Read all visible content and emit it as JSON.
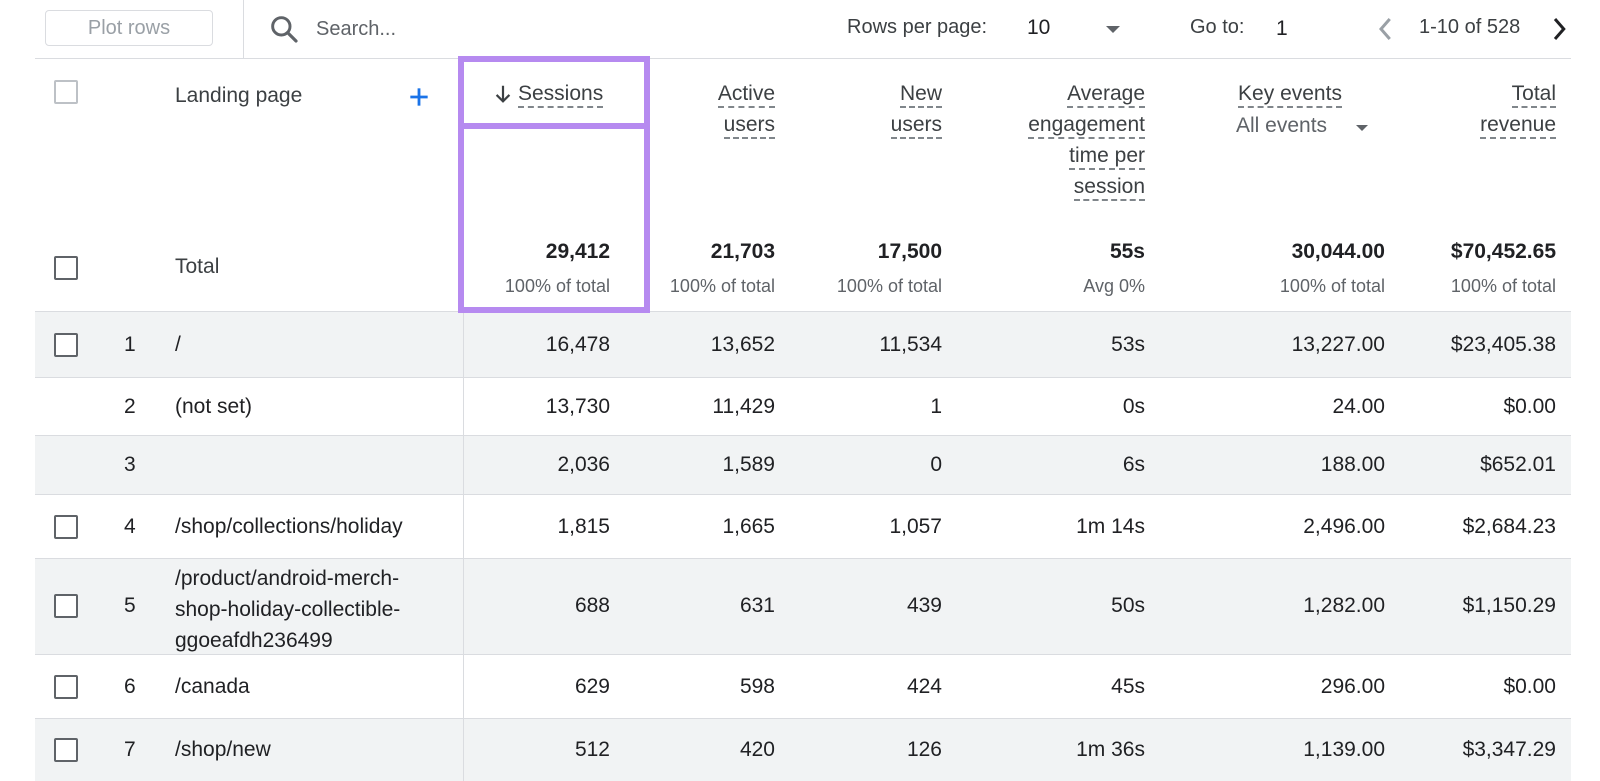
{
  "toolbar": {
    "plot_rows_label": "Plot rows",
    "search_placeholder": "Search...",
    "rows_per_page_label": "Rows per page:",
    "rows_per_page_value": "10",
    "go_to_label": "Go to:",
    "go_to_value": "1",
    "range_text": "1-10 of 528"
  },
  "header": {
    "dimension_label": "Landing page",
    "sessions_label": "Sessions",
    "active_users_label": [
      "Active",
      "users"
    ],
    "new_users_label": [
      "New",
      "users"
    ],
    "avg_engagement_label": [
      "Average",
      "engagement",
      "time per",
      "session"
    ],
    "key_events_label": "Key events",
    "key_events_filter": "All events",
    "total_revenue_label": [
      "Total",
      "revenue"
    ]
  },
  "totals": {
    "label": "Total",
    "sessions": "29,412",
    "sessions_sub": "100% of total",
    "active_users": "21,703",
    "active_users_sub": "100% of total",
    "new_users": "17,500",
    "new_users_sub": "100% of total",
    "avg_engagement": "55s",
    "avg_engagement_sub": "Avg 0%",
    "key_events": "30,044.00",
    "key_events_sub": "100% of total",
    "total_revenue": "$70,452.65",
    "total_revenue_sub": "100% of total"
  },
  "rows": [
    {
      "index": "1",
      "page": "/",
      "sessions": "16,478",
      "active_users": "13,652",
      "new_users": "11,534",
      "avg_engagement": "53s",
      "key_events": "13,227.00",
      "revenue": "$23,405.38"
    },
    {
      "index": "2",
      "page": "(not set)",
      "sessions": "13,730",
      "active_users": "11,429",
      "new_users": "1",
      "avg_engagement": "0s",
      "key_events": "24.00",
      "revenue": "$0.00"
    },
    {
      "index": "3",
      "page": "",
      "sessions": "2,036",
      "active_users": "1,589",
      "new_users": "0",
      "avg_engagement": "6s",
      "key_events": "188.00",
      "revenue": "$652.01"
    },
    {
      "index": "4",
      "page": "/shop/collections/holiday",
      "sessions": "1,815",
      "active_users": "1,665",
      "new_users": "1,057",
      "avg_engagement": "1m 14s",
      "key_events": "2,496.00",
      "revenue": "$2,684.23"
    },
    {
      "index": "5",
      "page_lines": [
        "/product/android-merch-",
        "shop-holiday-collectible-",
        "ggoeafdh236499"
      ],
      "sessions": "688",
      "active_users": "631",
      "new_users": "439",
      "avg_engagement": "50s",
      "key_events": "1,282.00",
      "revenue": "$1,150.29"
    },
    {
      "index": "6",
      "page": "/canada",
      "sessions": "629",
      "active_users": "598",
      "new_users": "424",
      "avg_engagement": "45s",
      "key_events": "296.00",
      "revenue": "$0.00"
    },
    {
      "index": "7",
      "page": "/shop/new",
      "sessions": "512",
      "active_users": "420",
      "new_users": "126",
      "avg_engagement": "1m 36s",
      "key_events": "1,139.00",
      "revenue": "$3,347.29"
    }
  ],
  "colors": {
    "highlight": "#b68af0",
    "accent_blue": "#1a73e8",
    "row_shade": "#f1f3f4"
  }
}
